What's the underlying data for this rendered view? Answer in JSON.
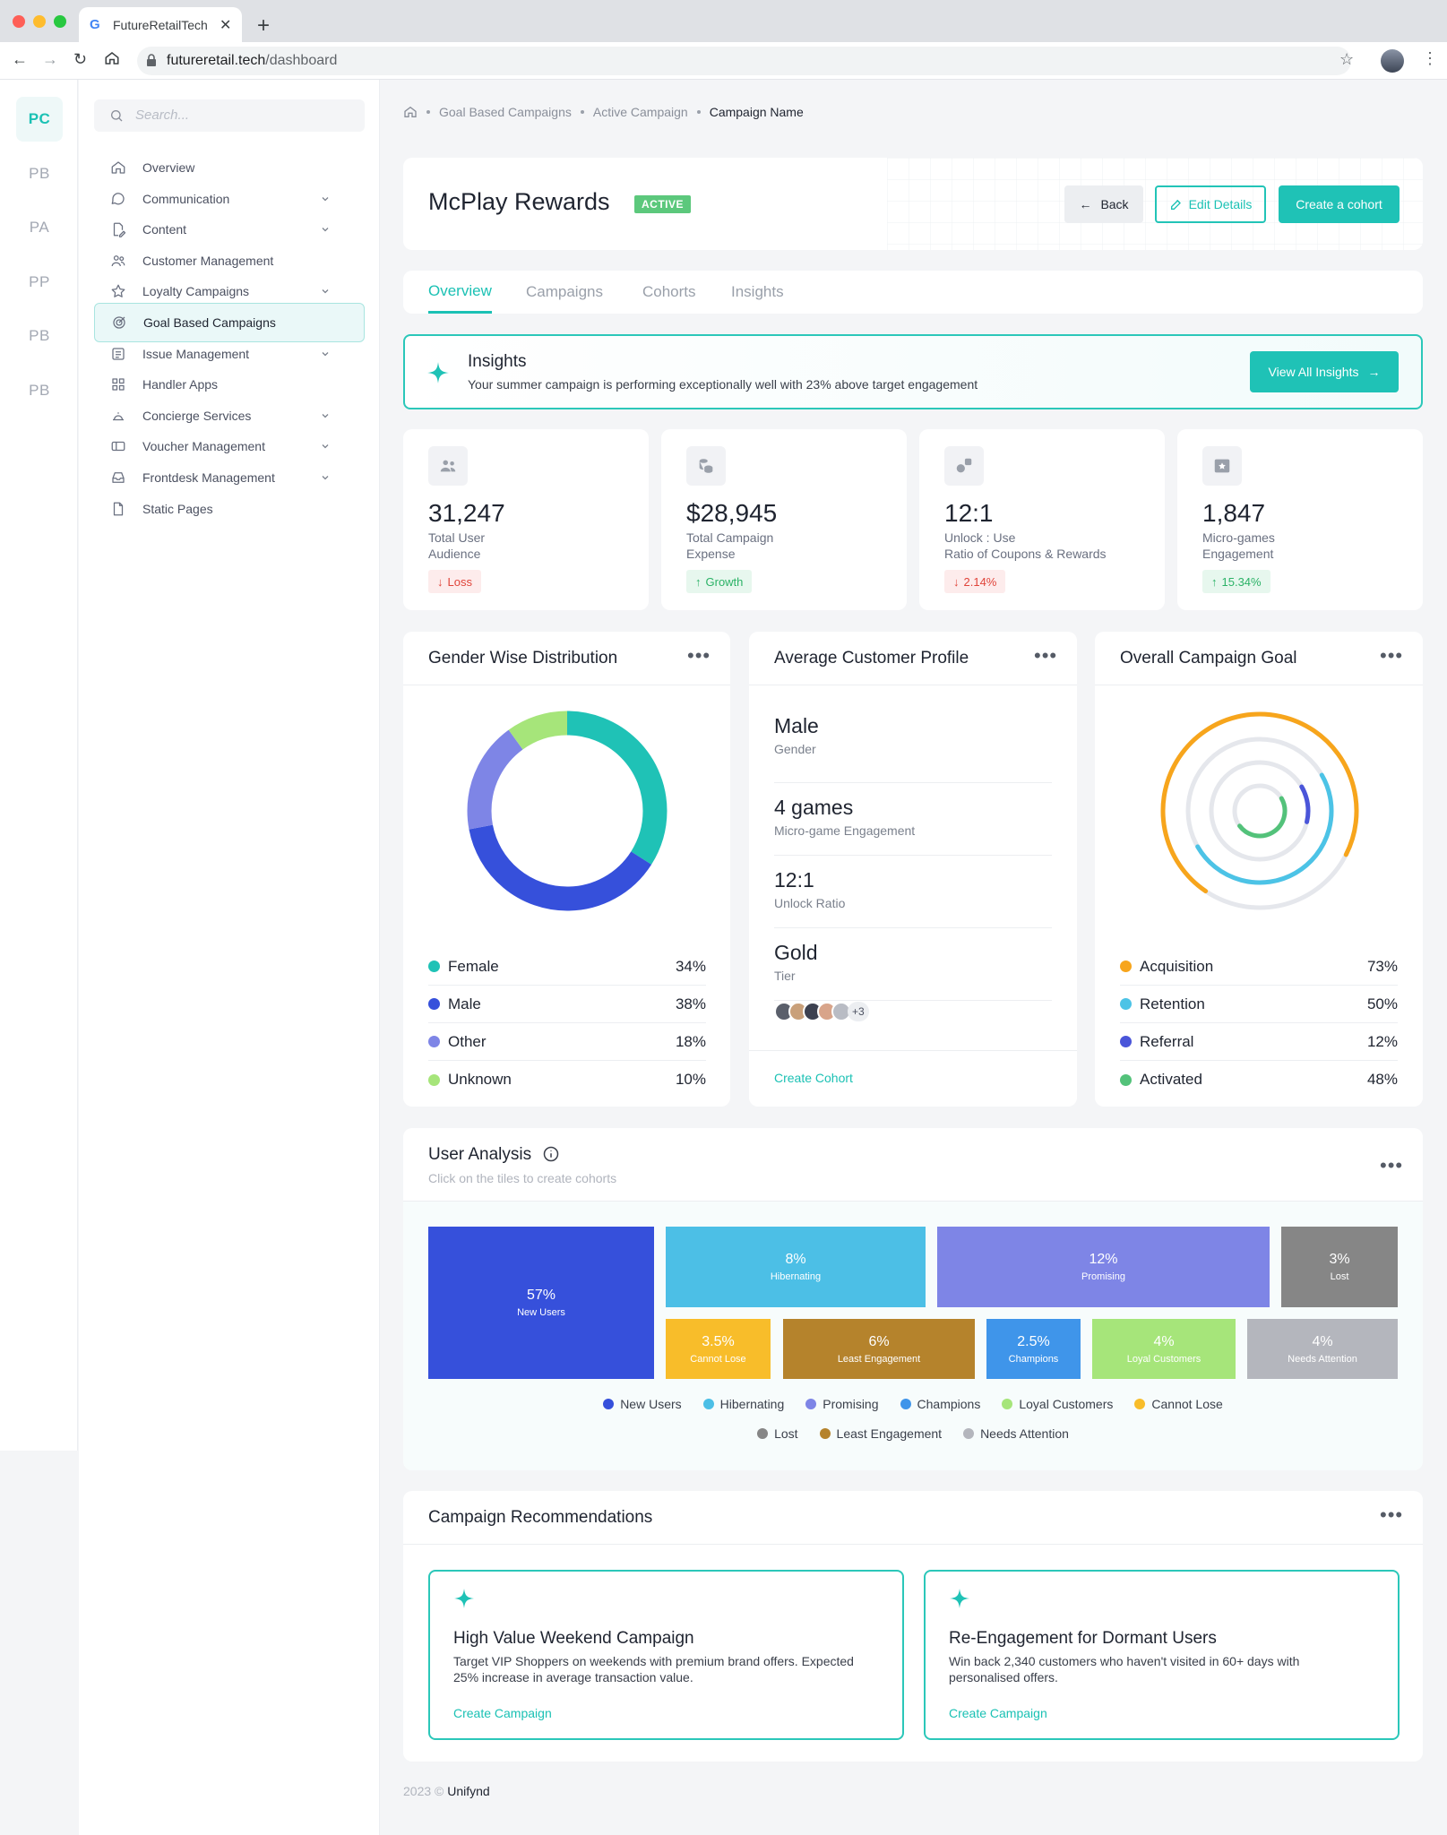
{
  "browser": {
    "tab_title": "FutureRetailTech",
    "url_host": "futureretail.tech",
    "url_path": "/dashboard"
  },
  "rail": [
    "PC",
    "PB",
    "PA",
    "PP",
    "PB",
    "PB"
  ],
  "nav": {
    "search_placeholder": "Search...",
    "items": [
      {
        "label": "Overview",
        "icon": "home-icon",
        "chevron": false,
        "active": false
      },
      {
        "label": "Communication",
        "icon": "chat-icon",
        "chevron": true,
        "active": false
      },
      {
        "label": "Content",
        "icon": "document-edit-icon",
        "chevron": true,
        "active": false
      },
      {
        "label": "Customer Management",
        "icon": "users-icon",
        "chevron": false,
        "active": false
      },
      {
        "label": "Loyalty Campaigns",
        "icon": "star-icon",
        "chevron": true,
        "active": false
      },
      {
        "label": "Goal Based Campaigns",
        "icon": "target-icon",
        "chevron": false,
        "active": true
      },
      {
        "label": "Issue Management",
        "icon": "list-icon",
        "chevron": true,
        "active": false
      },
      {
        "label": "Handler Apps",
        "icon": "grid-icon",
        "chevron": false,
        "active": false
      },
      {
        "label": "Concierge Services",
        "icon": "bell-icon",
        "chevron": true,
        "active": false
      },
      {
        "label": "Voucher Management",
        "icon": "voucher-icon",
        "chevron": true,
        "active": false
      },
      {
        "label": "Frontdesk Management",
        "icon": "inbox-icon",
        "chevron": true,
        "active": false
      },
      {
        "label": "Static Pages",
        "icon": "page-icon",
        "chevron": false,
        "active": false
      }
    ]
  },
  "breadcrumb": [
    "Goal Based Campaigns",
    "Active Campaign",
    "Campaign Name"
  ],
  "header": {
    "title": "McPlay Rewards",
    "status": "ACTIVE",
    "back_label": "Back",
    "edit_label": "Edit Details",
    "create_label": "Create a cohort"
  },
  "tabs": [
    "Overview",
    "Campaigns",
    "Cohorts",
    "Insights"
  ],
  "insights": {
    "title": "Insights",
    "text": "Your summer campaign is performing exceptionally well with 23% above target engagement",
    "button": "View All Insights"
  },
  "kpis": [
    {
      "value": "31,247",
      "label1": "Total User",
      "label2": "Audience",
      "badge": "Loss",
      "trend": "down",
      "icon": "users-icon"
    },
    {
      "value": "$28,945",
      "label1": "Total Campaign",
      "label2": "Expense",
      "badge": "Growth",
      "trend": "up",
      "icon": "coins-icon"
    },
    {
      "value": "12:1",
      "label1": "Unlock : Use",
      "label2": "Ratio of Coupons & Rewards",
      "badge": "2.14%",
      "trend": "down",
      "icon": "exchange-icon"
    },
    {
      "value": "1,847",
      "label1": "Micro-games",
      "label2": "Engagement",
      "badge": "15.34%",
      "trend": "up",
      "icon": "game-icon"
    }
  ],
  "gender": {
    "title": "Gender Wise Distribution",
    "items": [
      {
        "label": "Female",
        "value": 34,
        "pct": "34%",
        "color": "#1fc2b6"
      },
      {
        "label": "Male",
        "value": 38,
        "pct": "38%",
        "color": "#3650db"
      },
      {
        "label": "Other",
        "value": 18,
        "pct": "18%",
        "color": "#7e85e6"
      },
      {
        "label": "Unknown",
        "value": 10,
        "pct": "10%",
        "color": "#a6e57a"
      }
    ]
  },
  "profile": {
    "title": "Average Customer Profile",
    "rows": [
      {
        "value": "Male",
        "label": "Gender"
      },
      {
        "value": "4 games",
        "label": "Micro-game Engagement"
      },
      {
        "value": "12:1",
        "label": "Unlock Ratio"
      },
      {
        "value": "Gold",
        "label": "Tier"
      }
    ],
    "avatar_more": "+3",
    "link": "Create Cohort"
  },
  "goal": {
    "title": "Overall Campaign Goal",
    "items": [
      {
        "label": "Acquisition",
        "value": 73,
        "pct": "73%",
        "color": "#f7a51c"
      },
      {
        "label": "Retention",
        "value": 50,
        "pct": "50%",
        "color": "#4cc3e6"
      },
      {
        "label": "Referral",
        "value": 12,
        "pct": "12%",
        "color": "#4a55d9"
      },
      {
        "label": "Activated",
        "value": 48,
        "pct": "48%",
        "color": "#53c27a"
      }
    ]
  },
  "user_analysis": {
    "title": "User Analysis",
    "subtitle": "Click on the tiles to create cohorts",
    "tiles": [
      {
        "pct": "57%",
        "label": "New Users",
        "color": "#3650db"
      },
      {
        "pct": "8%",
        "label": "Hibernating",
        "color": "#4cbfe6"
      },
      {
        "pct": "12%",
        "label": "Promising",
        "color": "#7e85e6"
      },
      {
        "pct": "3%",
        "label": "Lost",
        "color": "#868686"
      },
      {
        "pct": "3.5%",
        "label": "Cannot Lose",
        "color": "#f8bd2a"
      },
      {
        "pct": "6%",
        "label": "Least Engagement",
        "color": "#b5832c"
      },
      {
        "pct": "2.5%",
        "label": "Champions",
        "color": "#3f95ea"
      },
      {
        "pct": "4%",
        "label": "Loyal Customers",
        "color": "#a6e57a"
      },
      {
        "pct": "4%",
        "label": "Needs Attention",
        "color": "#b4b6bd"
      }
    ],
    "legend": [
      {
        "label": "New Users",
        "color": "#3650db"
      },
      {
        "label": "Hibernating",
        "color": "#4cbfe6"
      },
      {
        "label": "Promising",
        "color": "#7e85e6"
      },
      {
        "label": "Champions",
        "color": "#3f95ea"
      },
      {
        "label": "Loyal Customers",
        "color": "#a6e57a"
      },
      {
        "label": "Cannot Lose",
        "color": "#f8bd2a"
      },
      {
        "label": "Lost",
        "color": "#868686"
      },
      {
        "label": "Least Engagement",
        "color": "#b5832c"
      },
      {
        "label": "Needs Attention",
        "color": "#b4b6bd"
      }
    ]
  },
  "recommendations": {
    "title": "Campaign Recommendations",
    "cards": [
      {
        "title": "High Value Weekend Campaign",
        "line1": "Target VIP Shoppers on weekends with premium brand offers. Expected",
        "line2": "25% increase in average transaction value.",
        "link": "Create Campaign"
      },
      {
        "title": "Re-Engagement for Dormant Users",
        "line1": "Win back 2,340 customers who haven't visited in 60+ days with",
        "line2": "personalised offers.",
        "link": "Create Campaign"
      }
    ]
  },
  "footer": {
    "year": "2023 ©",
    "brand": "Unifynd"
  }
}
